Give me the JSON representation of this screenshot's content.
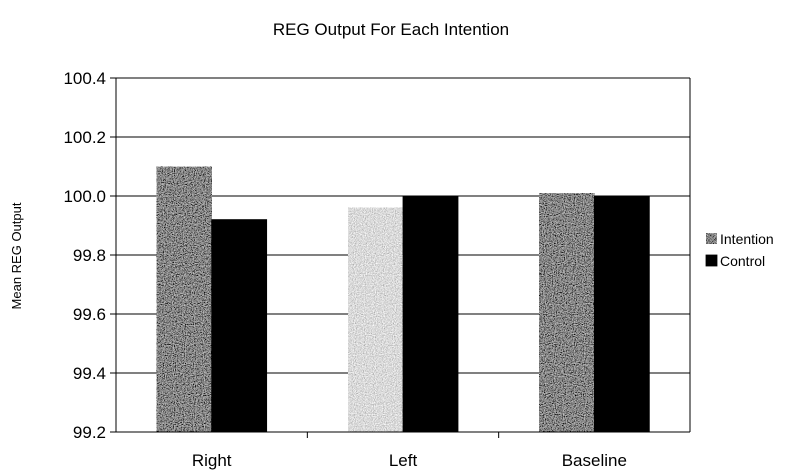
{
  "chart_data": {
    "type": "bar",
    "title": "REG Output For Each Intention",
    "xlabel": "",
    "ylabel": "Mean REG Output",
    "categories": [
      "Right",
      "Left",
      "Baseline"
    ],
    "series": [
      {
        "name": "Intention",
        "values": [
          100.1,
          99.96,
          100.01
        ]
      },
      {
        "name": "Control",
        "values": [
          99.92,
          100.0,
          100.0
        ]
      }
    ],
    "ylim": [
      99.2,
      100.4
    ],
    "yticks": [
      "99.2",
      "99.4",
      "99.6",
      "99.8",
      "100.0",
      "100.2",
      "100.4"
    ],
    "grid": true,
    "legend_position": "right",
    "colors": {
      "intention": "#8c8c8c",
      "intention_left": "#c8c8c8",
      "control": "#000000",
      "axis": "#000000",
      "grid": "#000000"
    }
  }
}
